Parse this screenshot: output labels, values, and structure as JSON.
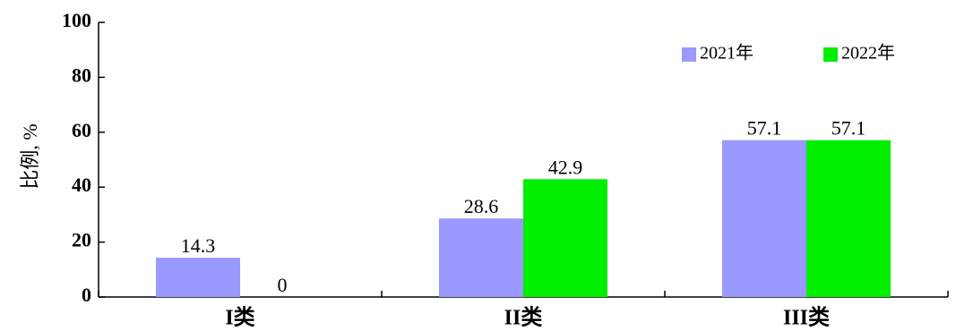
{
  "chart_data": {
    "type": "bar",
    "categories": [
      "I类",
      "II类",
      "III类"
    ],
    "series": [
      {
        "name": "2021年",
        "color": "#9999FF",
        "values": [
          14.3,
          28.6,
          57.1
        ]
      },
      {
        "name": "2022年",
        "color": "#00EE00",
        "values": [
          0,
          42.9,
          57.1
        ]
      }
    ],
    "ylabel": "比例, %",
    "xlabel": "",
    "title": "",
    "ylim": [
      0,
      100
    ],
    "yticks": [
      0,
      20,
      40,
      60,
      80,
      100
    ],
    "grid": false,
    "legend_position": "top-right"
  }
}
